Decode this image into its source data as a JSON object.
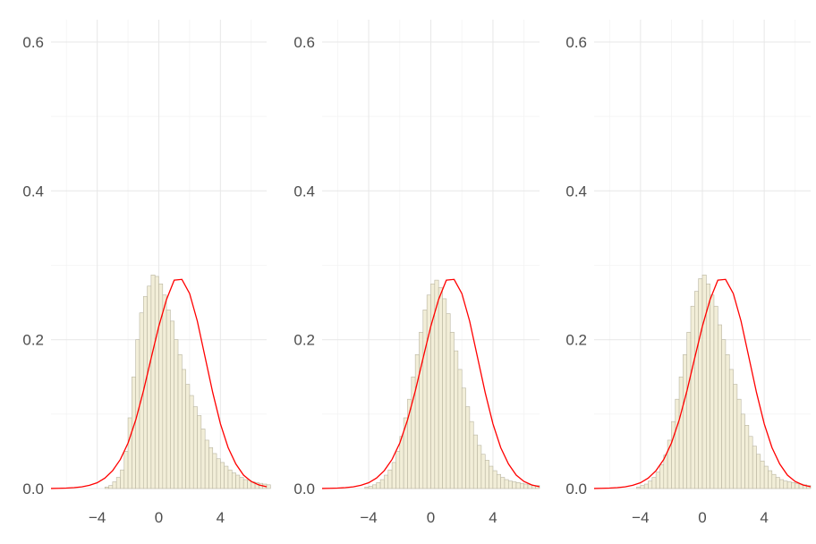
{
  "colors": {
    "grid_major": "#e9e9e9",
    "grid_minor": "#f3f3f3",
    "bar_fill": "#f2eed8",
    "bar_stroke": "#b9b5a0",
    "curve": "#ff0000",
    "tick_text": "#4d4d4d"
  },
  "chart_data": [
    {
      "type": "bar",
      "title": "",
      "xlabel": "",
      "ylabel": "",
      "xlim": [
        -7,
        7
      ],
      "ylim": [
        0,
        0.63
      ],
      "grid": true,
      "x_ticks": [
        -4,
        0,
        4
      ],
      "x_tick_labels": [
        "−4",
        "0",
        "4"
      ],
      "y_ticks": [
        0.0,
        0.2,
        0.4,
        0.6
      ],
      "y_tick_labels": [
        "0.0",
        "0.2",
        "0.4",
        "0.6"
      ],
      "histogram": {
        "bin_width": 0.25,
        "bin_start": -3.5,
        "values": [
          0.002,
          0.004,
          0.009,
          0.015,
          0.025,
          0.05,
          0.095,
          0.15,
          0.2,
          0.236,
          0.258,
          0.272,
          0.287,
          0.285,
          0.275,
          0.26,
          0.24,
          0.225,
          0.2,
          0.18,
          0.16,
          0.14,
          0.125,
          0.11,
          0.098,
          0.08,
          0.065,
          0.055,
          0.047,
          0.04,
          0.035,
          0.03,
          0.025,
          0.021,
          0.018,
          0.015,
          0.012,
          0.011,
          0.009,
          0.008,
          0.007,
          0.006,
          0.005
        ]
      },
      "curve": {
        "name": "",
        "x": [
          -7,
          -6.5,
          -6,
          -5.5,
          -5,
          -4.5,
          -4,
          -3.5,
          -3,
          -2.5,
          -2,
          -1.5,
          -1,
          -0.5,
          0,
          0.5,
          1,
          1.5,
          2,
          2.5,
          3,
          3.5,
          4,
          4.5,
          5,
          5.5,
          6,
          6.5,
          7
        ],
        "y": [
          0.0001,
          0.0003,
          0.0006,
          0.0012,
          0.0023,
          0.0043,
          0.0078,
          0.014,
          0.024,
          0.039,
          0.061,
          0.092,
          0.131,
          0.175,
          0.218,
          0.254,
          0.28,
          0.281,
          0.262,
          0.225,
          0.177,
          0.129,
          0.087,
          0.055,
          0.033,
          0.018,
          0.0095,
          0.0048,
          0.0024
        ]
      }
    },
    {
      "type": "bar",
      "title": "",
      "xlabel": "",
      "ylabel": "",
      "xlim": [
        -7,
        7
      ],
      "ylim": [
        0,
        0.63
      ],
      "grid": true,
      "x_ticks": [
        -4,
        0,
        4
      ],
      "x_tick_labels": [
        "−4",
        "0",
        "4"
      ],
      "y_ticks": [
        0.0,
        0.2,
        0.4,
        0.6
      ],
      "y_tick_labels": [
        "0.0",
        "0.2",
        "0.4",
        "0.6"
      ],
      "histogram": {
        "bin_width": 0.25,
        "bin_start": -4.25,
        "values": [
          0.002,
          0.003,
          0.005,
          0.008,
          0.012,
          0.018,
          0.025,
          0.035,
          0.05,
          0.07,
          0.095,
          0.12,
          0.15,
          0.18,
          0.21,
          0.24,
          0.26,
          0.275,
          0.28,
          0.27,
          0.255,
          0.235,
          0.21,
          0.185,
          0.16,
          0.135,
          0.11,
          0.09,
          0.072,
          0.058,
          0.046,
          0.038,
          0.03,
          0.024,
          0.019,
          0.015,
          0.012,
          0.01,
          0.009,
          0.008,
          0.007,
          0.006,
          0.005,
          0.004,
          0.004
        ]
      },
      "curve": {
        "name": "",
        "x": [
          -7,
          -6.5,
          -6,
          -5.5,
          -5,
          -4.5,
          -4,
          -3.5,
          -3,
          -2.5,
          -2,
          -1.5,
          -1,
          -0.5,
          0,
          0.5,
          1,
          1.5,
          2,
          2.5,
          3,
          3.5,
          4,
          4.5,
          5,
          5.5,
          6,
          6.5,
          7
        ],
        "y": [
          0.0001,
          0.0003,
          0.0006,
          0.0012,
          0.0023,
          0.0043,
          0.0078,
          0.014,
          0.024,
          0.039,
          0.061,
          0.092,
          0.131,
          0.175,
          0.218,
          0.254,
          0.28,
          0.281,
          0.262,
          0.225,
          0.177,
          0.129,
          0.087,
          0.055,
          0.033,
          0.018,
          0.0095,
          0.0048,
          0.0024
        ]
      }
    },
    {
      "type": "bar",
      "title": "",
      "xlabel": "",
      "ylabel": "",
      "xlim": [
        -7,
        7
      ],
      "ylim": [
        0,
        0.63
      ],
      "grid": true,
      "x_ticks": [
        -4,
        0,
        4
      ],
      "x_tick_labels": [
        "−4",
        "0",
        "4"
      ],
      "y_ticks": [
        0.0,
        0.2,
        0.4,
        0.6
      ],
      "y_tick_labels": [
        "0.0",
        "0.2",
        "0.4",
        "0.6"
      ],
      "histogram": {
        "bin_width": 0.25,
        "bin_start": -4.25,
        "values": [
          0.002,
          0.004,
          0.006,
          0.01,
          0.015,
          0.022,
          0.032,
          0.045,
          0.065,
          0.09,
          0.12,
          0.15,
          0.18,
          0.21,
          0.245,
          0.265,
          0.282,
          0.287,
          0.275,
          0.26,
          0.245,
          0.22,
          0.2,
          0.18,
          0.16,
          0.14,
          0.12,
          0.1,
          0.085,
          0.07,
          0.057,
          0.046,
          0.037,
          0.03,
          0.024,
          0.019,
          0.015,
          0.012,
          0.01,
          0.009,
          0.008,
          0.007,
          0.006,
          0.005,
          0.004
        ]
      },
      "curve": {
        "name": "",
        "x": [
          -7,
          -6.5,
          -6,
          -5.5,
          -5,
          -4.5,
          -4,
          -3.5,
          -3,
          -2.5,
          -2,
          -1.5,
          -1,
          -0.5,
          0,
          0.5,
          1,
          1.5,
          2,
          2.5,
          3,
          3.5,
          4,
          4.5,
          5,
          5.5,
          6,
          6.5,
          7
        ],
        "y": [
          0.0001,
          0.0003,
          0.0006,
          0.0012,
          0.0023,
          0.0043,
          0.0078,
          0.014,
          0.024,
          0.039,
          0.061,
          0.092,
          0.131,
          0.175,
          0.218,
          0.254,
          0.28,
          0.281,
          0.262,
          0.225,
          0.177,
          0.129,
          0.087,
          0.055,
          0.033,
          0.018,
          0.0095,
          0.0048,
          0.0024
        ]
      }
    }
  ]
}
